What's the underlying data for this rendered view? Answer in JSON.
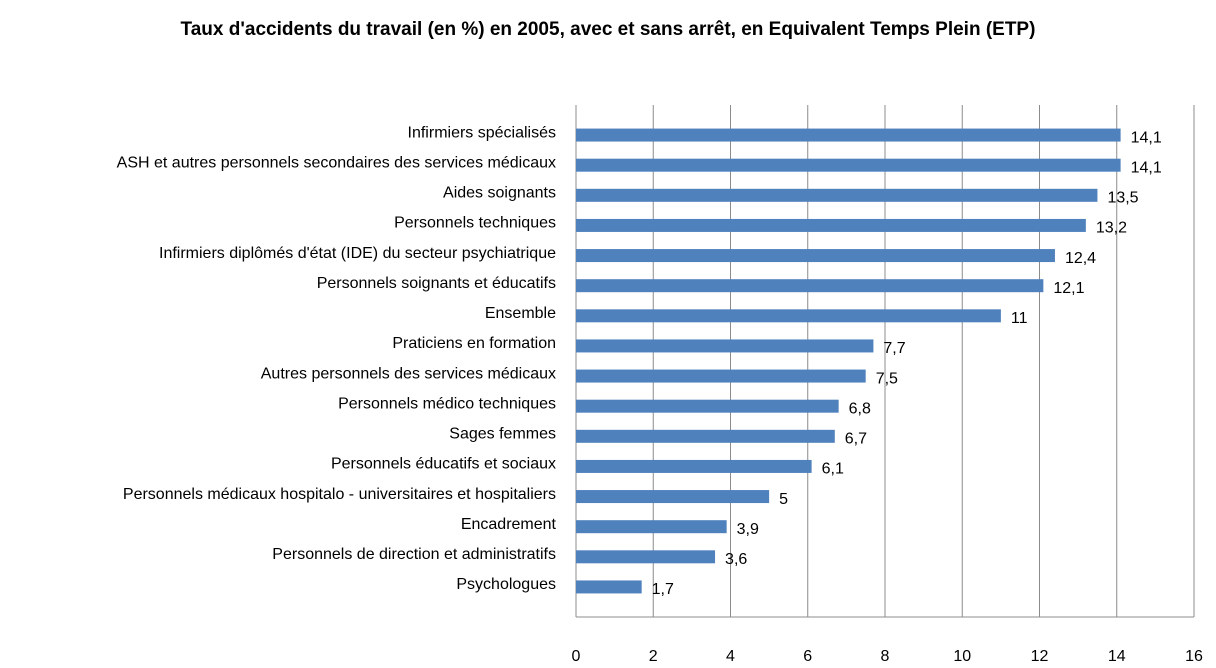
{
  "chart_data": {
    "type": "bar",
    "orientation": "horizontal",
    "title": "Taux d'accidents du travail (en %) en 2005, avec et sans arrêt, en Equivalent Temps Plein (ETP)",
    "categories": [
      "Infirmiers spécialisés",
      "ASH et autres  personnels secondaires des services médicaux",
      "Aides soignants",
      "Personnels techniques",
      "Infirmiers diplômés d'état (IDE) du secteur psychiatrique",
      "Personnels soignants et éducatifs",
      "Ensemble",
      "Praticiens en formation",
      "Autres personnels des services médicaux",
      "Personnels médico techniques",
      "Sages femmes",
      "Personnels éducatifs et sociaux",
      "Personnels médicaux hospitalo - universitaires et hospitaliers",
      "Encadrement",
      "Personnels de direction et administratifs",
      "Psychologues"
    ],
    "values": [
      14.1,
      14.1,
      13.5,
      13.2,
      12.4,
      12.1,
      11,
      7.7,
      7.5,
      6.8,
      6.7,
      6.1,
      5,
      3.9,
      3.6,
      1.7
    ],
    "value_labels": [
      "14,1",
      "14,1",
      "13,5",
      "13,2",
      "12,4",
      "12,1",
      "11",
      "7,7",
      "7,5",
      "6,8",
      "6,7",
      "6,1",
      "5",
      "3,9",
      "3,6",
      "1,7"
    ],
    "color": "#4f81bd",
    "xlim": [
      0,
      16
    ],
    "xticks": [
      0,
      2,
      4,
      6,
      8,
      10,
      12,
      14,
      16
    ],
    "grid": true
  }
}
